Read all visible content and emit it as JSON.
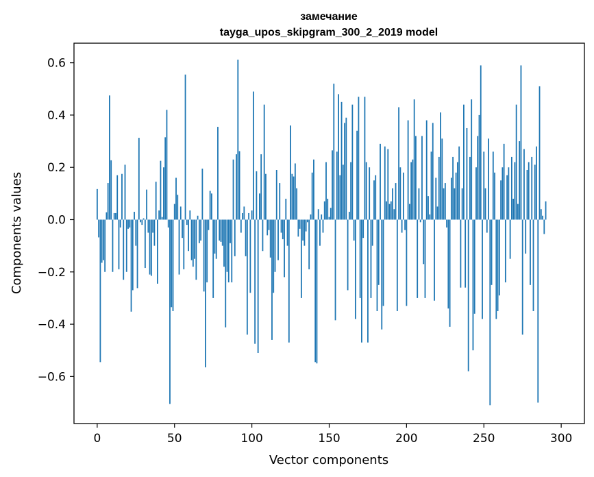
{
  "chart_data": {
    "type": "bar",
    "title_line1": "замечание",
    "title_line2": "tayga_upos_skipgram_300_2_2019 model",
    "xlabel": "Vector components",
    "ylabel": "Components values",
    "xlim": [
      -15,
      315
    ],
    "ylim": [
      -0.78,
      0.675
    ],
    "xticks": [
      {
        "value": 0,
        "label": "0"
      },
      {
        "value": 50,
        "label": "50"
      },
      {
        "value": 100,
        "label": "100"
      },
      {
        "value": 150,
        "label": "150"
      },
      {
        "value": 200,
        "label": "200"
      },
      {
        "value": 250,
        "label": "250"
      },
      {
        "value": 300,
        "label": "300"
      }
    ],
    "yticks": [
      {
        "value": -0.6,
        "label": "−0.6"
      },
      {
        "value": -0.4,
        "label": "−0.4"
      },
      {
        "value": -0.2,
        "label": "−0.2"
      },
      {
        "value": 0.0,
        "label": "0.0"
      },
      {
        "value": 0.2,
        "label": "0.2"
      },
      {
        "value": 0.4,
        "label": "0.4"
      },
      {
        "value": 0.6,
        "label": "0.6"
      }
    ],
    "bar_color": "#1f77b4",
    "values": [
      0.117,
      -0.068,
      -0.545,
      -0.165,
      -0.155,
      -0.2,
      0.028,
      0.14,
      0.475,
      0.227,
      -0.2,
      0.025,
      0.025,
      0.17,
      -0.19,
      -0.03,
      0.175,
      -0.23,
      0.21,
      -0.2,
      -0.035,
      -0.03,
      -0.352,
      -0.27,
      0.03,
      -0.1,
      -0.262,
      0.313,
      -0.01,
      -0.02,
      0.005,
      -0.185,
      0.115,
      -0.05,
      -0.21,
      -0.215,
      -0.05,
      -0.1,
      0.145,
      -0.245,
      0.035,
      0.225,
      0.01,
      0.2,
      0.315,
      0.42,
      -0.03,
      -0.705,
      -0.335,
      -0.35,
      0.06,
      0.16,
      0.095,
      -0.21,
      0.05,
      -0.07,
      -0.19,
      0.555,
      -0.02,
      -0.12,
      0.035,
      -0.155,
      -0.18,
      -0.15,
      -0.23,
      0.015,
      -0.09,
      -0.08,
      0.195,
      -0.275,
      -0.565,
      -0.24,
      -0.04,
      0.11,
      0.1,
      -0.3,
      -0.13,
      -0.15,
      0.355,
      -0.08,
      -0.085,
      -0.1,
      -0.18,
      -0.412,
      -0.2,
      -0.24,
      -0.09,
      -0.24,
      0.23,
      -0.14,
      0.25,
      0.612,
      0.262,
      -0.05,
      0.025,
      0.05,
      -0.14,
      -0.44,
      0.025,
      -0.28,
      0.035,
      0.49,
      -0.475,
      0.185,
      -0.51,
      0.1,
      0.25,
      -0.12,
      0.44,
      0.175,
      -0.06,
      -0.04,
      -0.145,
      -0.46,
      -0.28,
      -0.2,
      0.19,
      -0.155,
      0.14,
      -0.05,
      -0.075,
      -0.22,
      0.08,
      -0.1,
      -0.47,
      0.36,
      0.175,
      0.165,
      0.215,
      0.12,
      -0.065,
      -0.035,
      -0.3,
      -0.08,
      -0.1,
      -0.045,
      -0.01,
      -0.19,
      0.02,
      0.18,
      0.23,
      -0.545,
      -0.55,
      0.04,
      -0.1,
      0.02,
      -0.05,
      0.07,
      0.22,
      0.08,
      0.01,
      0.045,
      0.265,
      0.52,
      -0.385,
      0.26,
      0.48,
      0.17,
      0.45,
      0.21,
      0.37,
      0.39,
      -0.27,
      0.03,
      0.22,
      0.44,
      -0.08,
      -0.38,
      0.34,
      0.47,
      -0.3,
      -0.47,
      -0.07,
      0.47,
      0.22,
      -0.47,
      0.2,
      -0.3,
      -0.1,
      0.15,
      0.17,
      -0.35,
      -0.25,
      0.29,
      -0.42,
      -0.33,
      0.28,
      0.07,
      0.27,
      0.06,
      0.07,
      0.12,
      0.04,
      0.14,
      -0.35,
      0.43,
      0.2,
      -0.05,
      0.18,
      -0.04,
      -0.33,
      0.38,
      0.06,
      0.22,
      0.23,
      0.46,
      0.32,
      -0.3,
      0.12,
      -0.01,
      0.32,
      -0.17,
      -0.3,
      0.38,
      0.09,
      0.02,
      0.26,
      0.37,
      -0.31,
      0.16,
      0.05,
      0.24,
      0.41,
      0.31,
      0.12,
      0.14,
      -0.03,
      -0.34,
      -0.41,
      0.16,
      0.24,
      0.12,
      0.18,
      0.22,
      0.28,
      -0.26,
      0.12,
      0.44,
      -0.26,
      0.35,
      -0.58,
      0.24,
      0.46,
      -0.5,
      -0.36,
      0.2,
      0.32,
      0.4,
      0.59,
      -0.38,
      0.26,
      0.12,
      -0.05,
      0.31,
      -0.71,
      -0.25,
      0.26,
      0.18,
      -0.38,
      -0.35,
      -0.29,
      0.15,
      0.2,
      0.29,
      -0.24,
      0.17,
      0.2,
      -0.15,
      0.24,
      0.08,
      0.22,
      0.44,
      0.06,
      0.3,
      0.59,
      -0.44,
      0.27,
      -0.13,
      0.19,
      0.22,
      -0.25,
      0.24,
      -0.35,
      0.21,
      0.28,
      -0.7,
      0.51,
      0.04,
      0.015,
      -0.055,
      0.07
    ]
  }
}
